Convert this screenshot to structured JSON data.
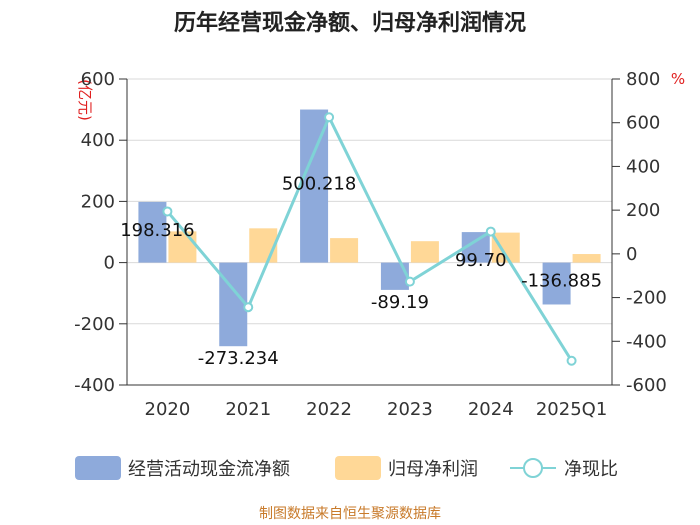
{
  "chart_data": {
    "type": "bar",
    "title": "历年经营现金净额、归母净利润情况",
    "categories": [
      "2020",
      "2021",
      "2022",
      "2023",
      "2024",
      "2025Q1"
    ],
    "left_axis_unit": "(亿元)",
    "right_axis_unit": "%",
    "ylim_left": [
      -400,
      600
    ],
    "yticks_left": [
      600,
      400,
      200,
      0,
      -200,
      -400
    ],
    "yticks_left_labels": [
      "600",
      "400",
      "200",
      "0",
      "-200",
      "-400"
    ],
    "ylim_right": [
      -600,
      800
    ],
    "yticks_right": [
      800,
      600,
      400,
      200,
      0,
      -200,
      -400,
      -600
    ],
    "yticks_right_labels": [
      "800",
      "600",
      "400",
      "200",
      "0",
      "-200",
      "-400",
      "-600"
    ],
    "grid": true,
    "legend_position": "bottom",
    "series": [
      {
        "name": "经营活动现金流净额",
        "type": "bar",
        "axis": "left",
        "color": "#8eaadb",
        "values": [
          198.316,
          -273.234,
          500.218,
          -89.19,
          99.7,
          -136.885
        ],
        "labels": [
          "198.316",
          "-273.234",
          "500.218",
          "-89.19",
          "99.70",
          "-136.885"
        ]
      },
      {
        "name": "归母净利润",
        "type": "bar",
        "axis": "left",
        "color": "#ffd897",
        "values": [
          102,
          112,
          80,
          70,
          98,
          28
        ]
      },
      {
        "name": "净现比",
        "type": "line",
        "axis": "right",
        "color": "#7fd3d6",
        "values": [
          194,
          -244,
          625,
          -127,
          102,
          -489
        ]
      }
    ],
    "source": "制图数据来自恒生聚源数据库"
  }
}
